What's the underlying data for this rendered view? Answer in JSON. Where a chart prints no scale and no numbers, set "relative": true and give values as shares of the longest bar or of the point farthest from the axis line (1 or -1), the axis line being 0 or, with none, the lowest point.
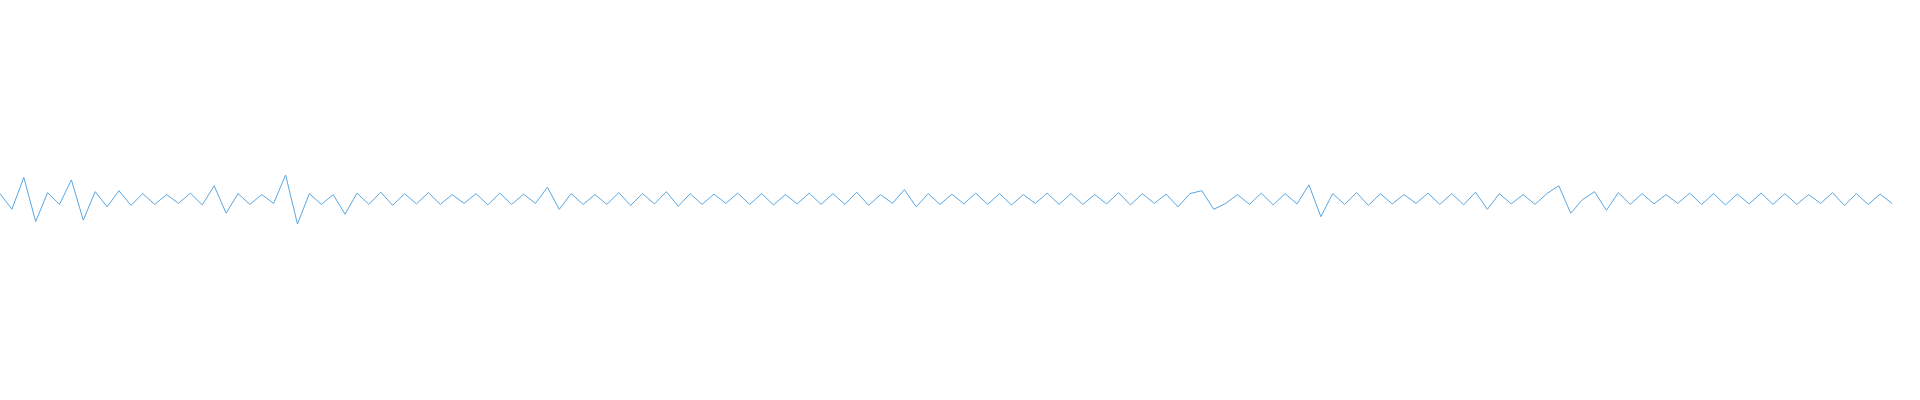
{
  "chart_data": {
    "type": "line",
    "relative": true,
    "color": "#5aa6e0",
    "legend": false,
    "marker": "none",
    "categories": [
      null,
      null,
      null,
      null,
      null,
      null,
      null,
      null,
      null,
      null,
      null,
      null,
      null,
      null,
      null,
      null,
      null,
      null,
      null,
      null,
      null,
      null,
      null,
      null,
      null,
      null,
      null,
      null,
      null,
      null,
      null,
      null,
      null,
      null,
      null,
      null,
      null,
      null,
      null,
      null,
      null,
      null,
      null,
      null,
      null,
      null,
      null,
      null,
      null,
      null,
      null,
      null,
      null,
      null,
      null,
      null,
      null,
      null,
      null,
      null,
      null,
      null,
      null,
      null,
      null,
      null,
      null,
      null,
      null,
      null,
      null,
      null,
      null,
      null,
      null,
      null,
      null,
      null,
      null,
      null,
      null,
      null,
      null,
      null,
      null,
      null,
      null,
      null,
      null,
      null,
      null,
      null,
      null,
      null,
      null,
      null,
      null,
      null,
      null,
      null,
      null,
      null,
      null,
      null,
      null,
      null,
      null,
      null,
      null,
      null,
      null,
      null,
      null,
      null,
      null,
      null,
      null,
      null,
      null,
      null,
      null,
      null,
      null,
      null,
      null,
      null,
      null,
      null,
      null,
      null,
      null,
      null,
      null,
      null,
      null,
      null,
      null,
      null,
      null,
      null,
      null,
      null,
      null,
      null,
      null,
      null,
      null,
      null,
      null,
      null,
      null,
      null,
      null,
      null,
      null,
      null,
      null,
      null,
      null,
      null
    ],
    "values": [
      0.62,
      0.3,
      0.95,
      0.05,
      0.64,
      0.4,
      0.9,
      0.08,
      0.66,
      0.35,
      0.68,
      0.38,
      0.62,
      0.4,
      0.6,
      0.42,
      0.63,
      0.39,
      0.78,
      0.22,
      0.62,
      0.4,
      0.6,
      0.42,
      1.0,
      0,
      0.62,
      0.4,
      0.6,
      0.2,
      0.63,
      0.4,
      0.65,
      0.38,
      0.62,
      0.41,
      0.64,
      0.4,
      0.6,
      0.42,
      0.62,
      0.39,
      0.63,
      0.4,
      0.61,
      0.42,
      0.75,
      0.3,
      0.62,
      0.4,
      0.6,
      0.4,
      0.64,
      0.38,
      0.62,
      0.41,
      0.66,
      0.36,
      0.62,
      0.4,
      0.61,
      0.42,
      0.63,
      0.4,
      0.62,
      0.39,
      0.6,
      0.41,
      0.63,
      0.4,
      0.62,
      0.4,
      0.65,
      0.38,
      0.6,
      0.42,
      0.7,
      0.35,
      0.62,
      0.4,
      0.61,
      0.41,
      0.63,
      0.4,
      0.62,
      0.39,
      0.6,
      0.42,
      0.63,
      0.4,
      0.62,
      0.4,
      0.6,
      0.41,
      0.64,
      0.39,
      0.62,
      0.42,
      0.61,
      0.35,
      0.62,
      0.68,
      0.3,
      0.42,
      0.6,
      0.4,
      0.63,
      0.39,
      0.62,
      0.41,
      0.8,
      0.15,
      0.62,
      0.4,
      0.64,
      0.38,
      0.62,
      0.41,
      0.6,
      0.42,
      0.63,
      0.4,
      0.62,
      0.39,
      0.65,
      0.3,
      0.62,
      0.41,
      0.6,
      0.4,
      0.62,
      0.78,
      0.22,
      0.5,
      0.66,
      0.28,
      0.64,
      0.4,
      0.62,
      0.41,
      0.6,
      0.42,
      0.63,
      0.4,
      0.62,
      0.39,
      0.61,
      0.41,
      0.63,
      0.4,
      0.62,
      0.4,
      0.6,
      0.42,
      0.64,
      0.38,
      0.62,
      0.4,
      0.61,
      0.42
    ]
  }
}
